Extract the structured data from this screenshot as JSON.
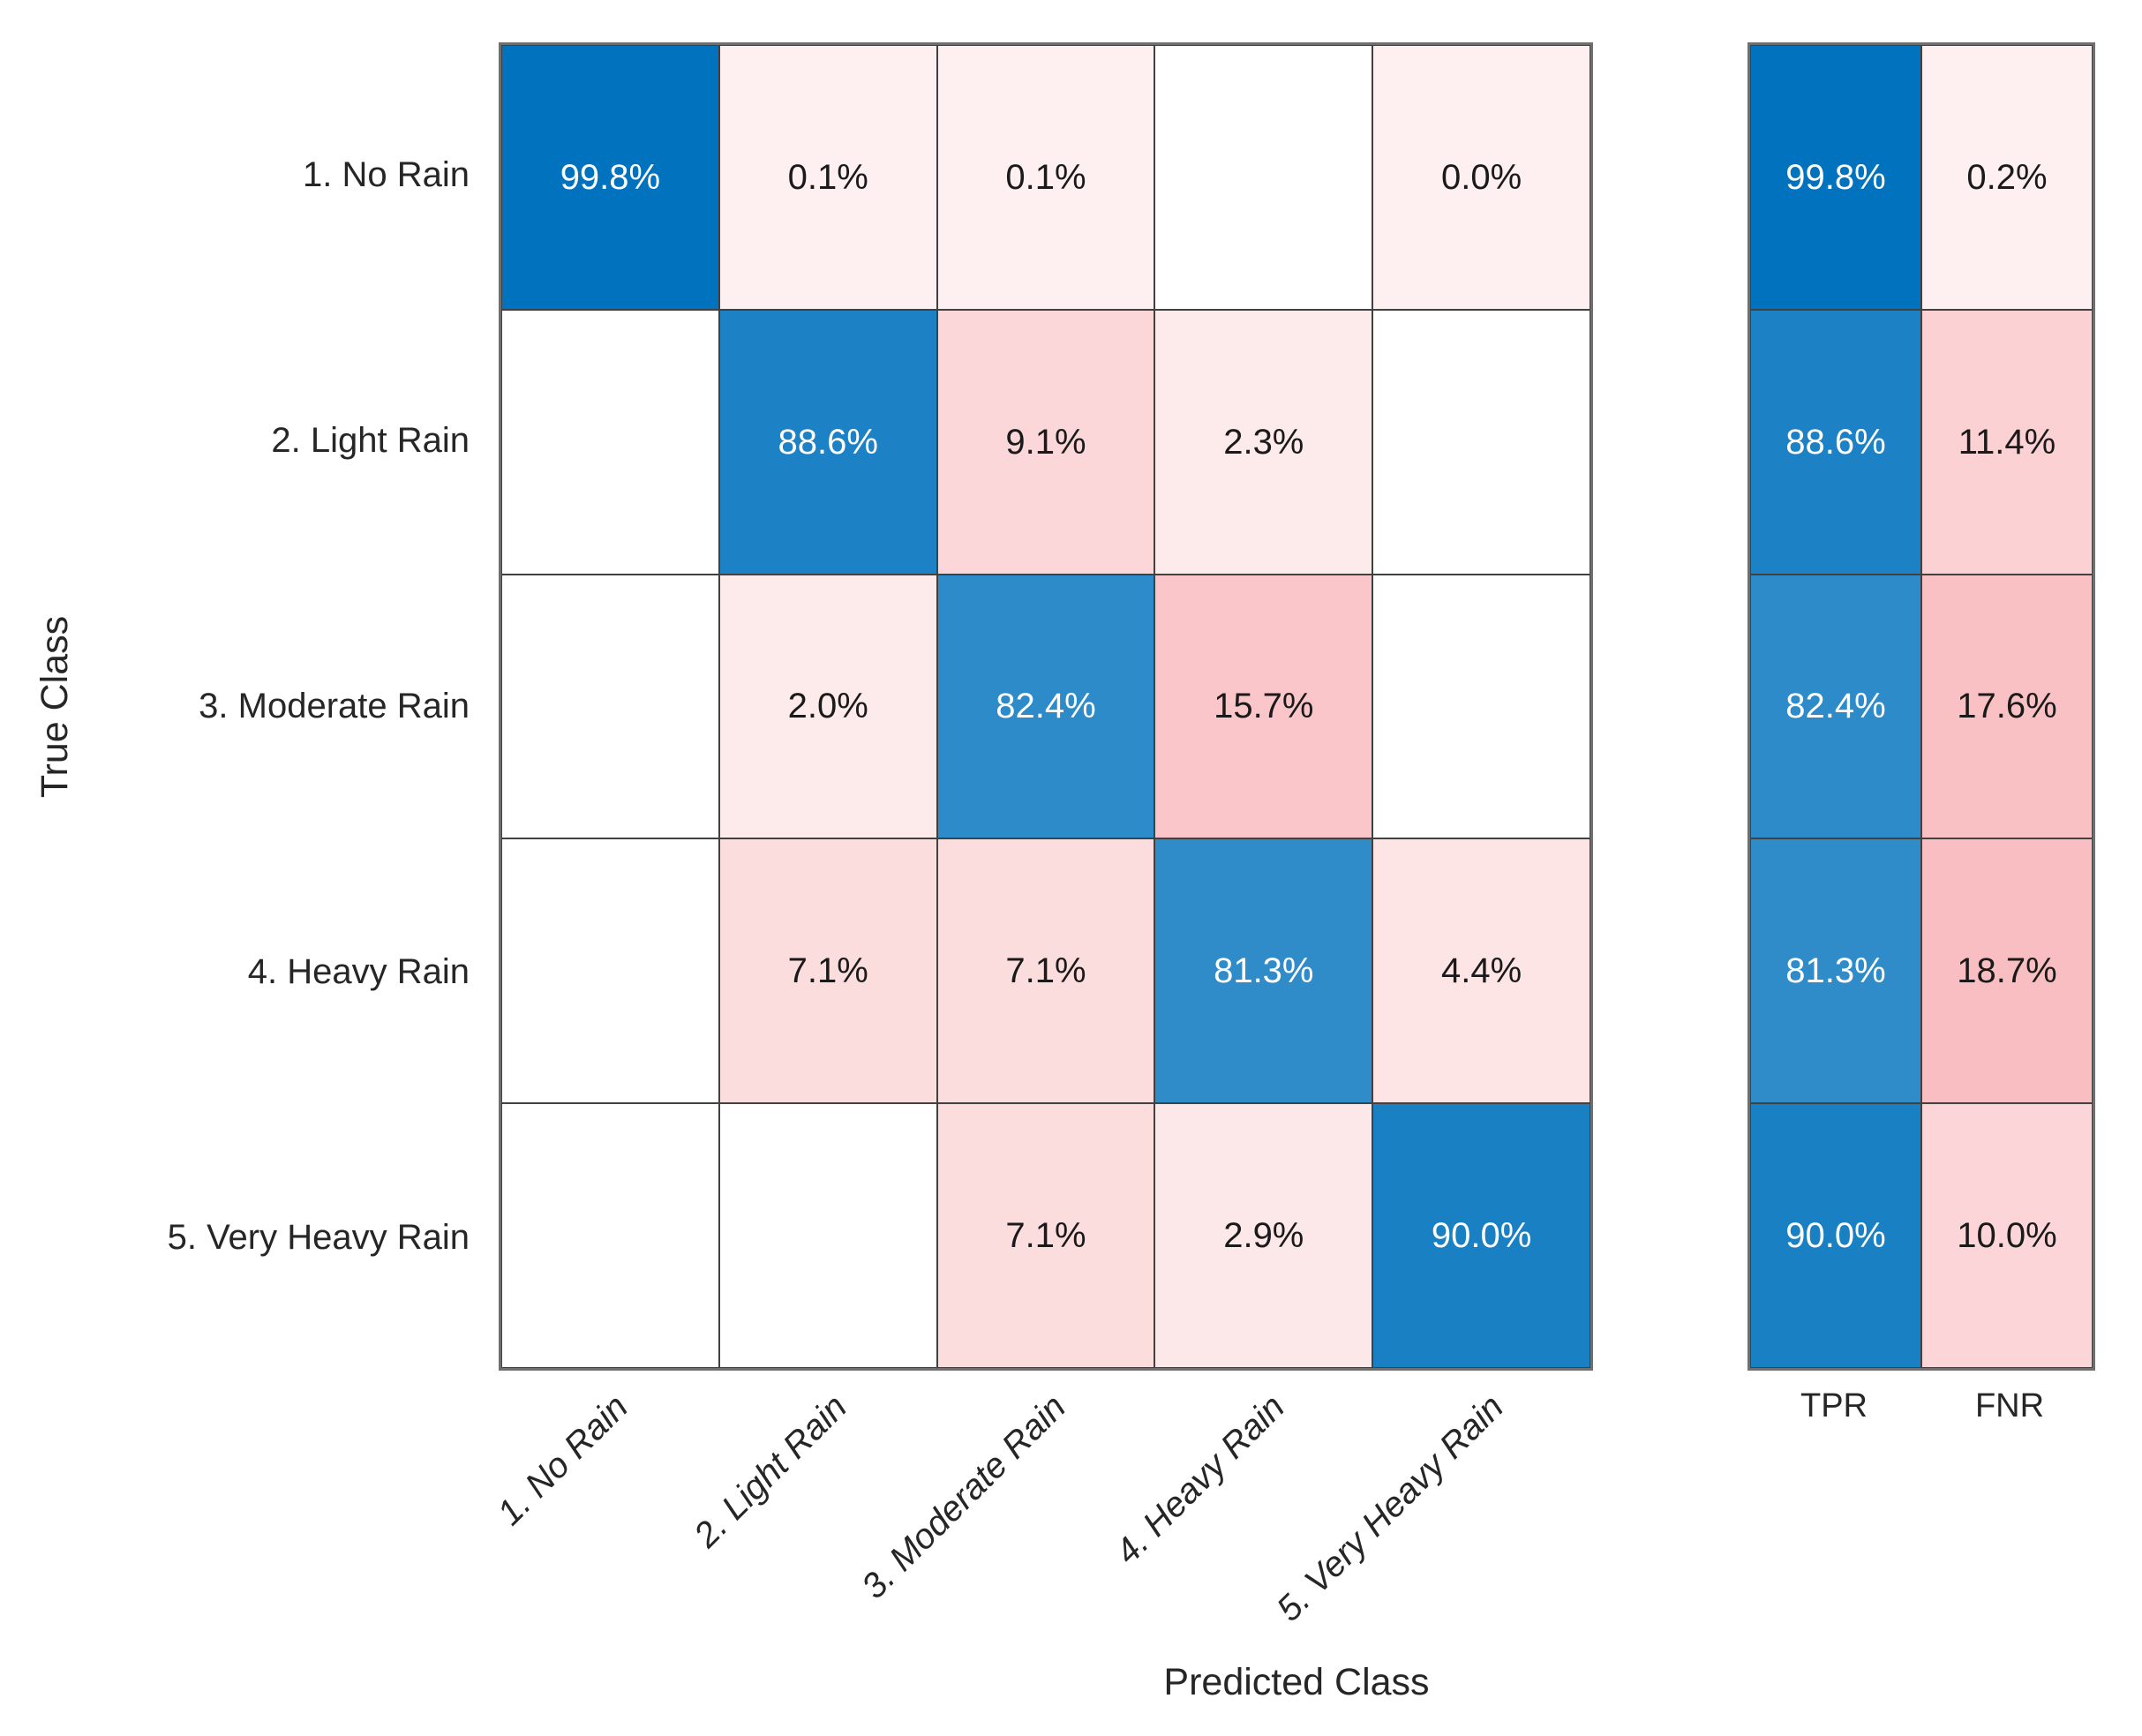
{
  "chart_data": {
    "type": "heatmap",
    "variant": "confusion-matrix-row-normalized",
    "title": "",
    "xlabel": "Predicted Class",
    "ylabel": "True Class",
    "classes": [
      "1. No Rain",
      "2. Light Rain",
      "3. Moderate Rain",
      "4. Heavy Rain",
      "5. Very Heavy Rain"
    ],
    "matrix_percent": [
      [
        99.8,
        0.1,
        0.1,
        null,
        0.0
      ],
      [
        null,
        88.6,
        9.1,
        2.3,
        null
      ],
      [
        null,
        2.0,
        82.4,
        15.7,
        null
      ],
      [
        null,
        7.1,
        7.1,
        81.3,
        4.4
      ],
      [
        null,
        null,
        7.1,
        2.9,
        90.0
      ]
    ],
    "row_summary": {
      "columns": [
        "TPR",
        "FNR"
      ],
      "tpr_percent": [
        99.8,
        88.6,
        82.4,
        81.3,
        90.0
      ],
      "fnr_percent": [
        0.2,
        11.4,
        17.6,
        18.7,
        10.0
      ]
    },
    "value_suffix": "%",
    "grid": "on",
    "legend_position": "none",
    "colors": {
      "diagonal_base": "#0072BD",
      "off_diagonal_base": "#E8000D",
      "empty_cell": "#FFFFFF",
      "grid_line": "#414141",
      "frame_line": "#6F6F6F",
      "text_dark": "#1A1A1A",
      "text_light": "#FFFFFF",
      "axis_text": "#262626",
      "background": "#FFFFFF"
    }
  }
}
